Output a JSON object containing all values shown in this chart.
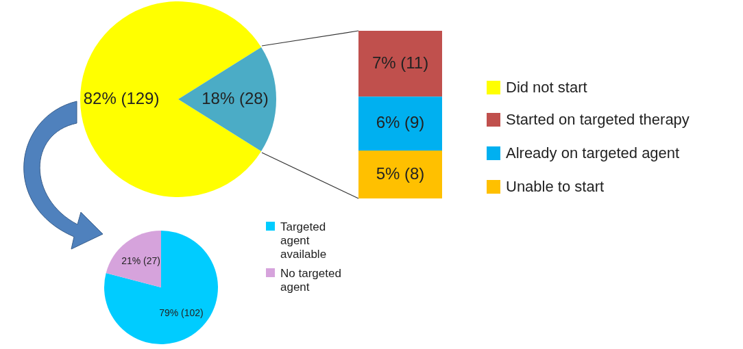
{
  "chart_data": [
    {
      "type": "pie",
      "categories": [
        "Did not start",
        null
      ],
      "values": [
        129,
        28
      ],
      "colors": [
        "#ffff00",
        "#4bacc6"
      ],
      "value_labels": [
        "82% (129)",
        "18% (28)"
      ],
      "legend": "right"
    },
    {
      "type": "bar",
      "stacked": true,
      "categories": [
        null
      ],
      "legend": "right",
      "series": [
        {
          "name": "Unable to start",
          "color": "#ffc000",
          "values": [
            8
          ],
          "value_labels": [
            "5% (8)"
          ]
        },
        {
          "name": "Already on targeted agent",
          "color": "#00b0f0",
          "values": [
            9
          ],
          "value_labels": [
            "6% (9)"
          ]
        },
        {
          "name": "Started on targeted therapy",
          "color": "#c0504d",
          "values": [
            11
          ],
          "value_labels": [
            "7% (11)"
          ]
        }
      ]
    },
    {
      "type": "pie",
      "categories": [
        "Targeted agent available",
        "No targeted agent"
      ],
      "values": [
        102,
        27
      ],
      "colors": [
        "#00ccff",
        "#d6a3dc"
      ],
      "value_labels": [
        "79% (102)",
        "21% (27)"
      ],
      "legend": "right"
    }
  ]
}
